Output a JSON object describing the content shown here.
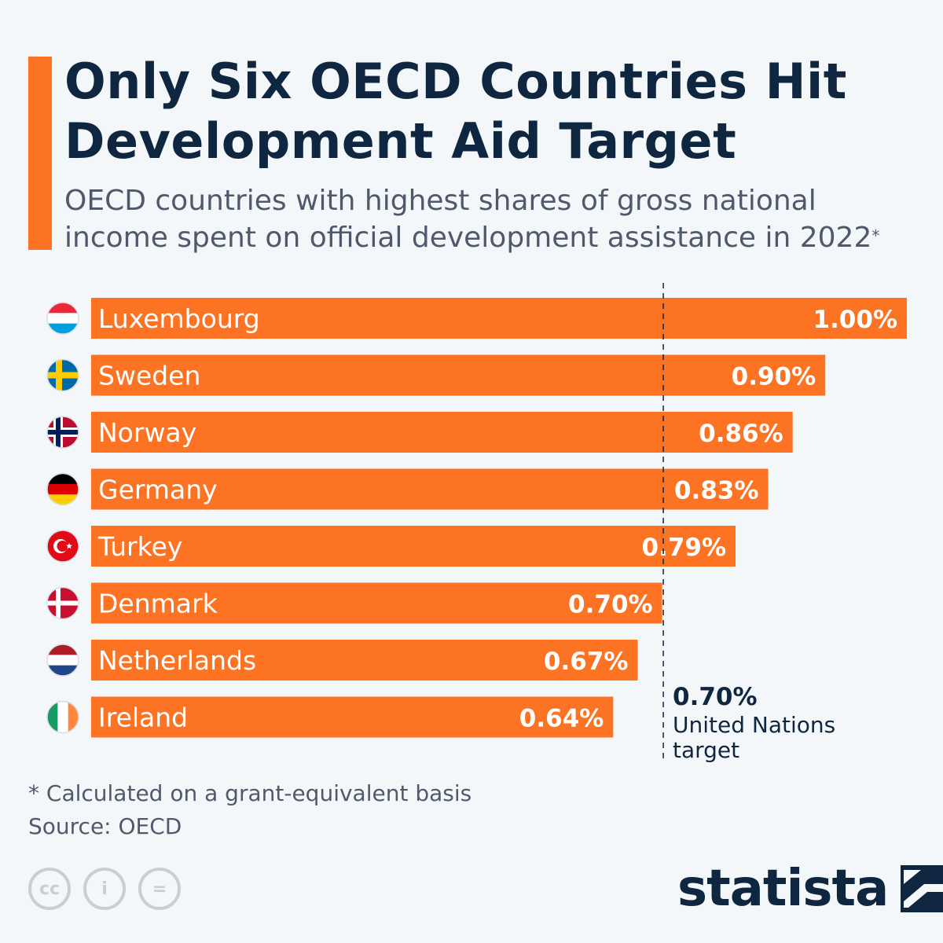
{
  "title": "Only Six OECD Countries Hit Development Aid Target",
  "subtitle": "OECD countries with highest shares of gross national income spent on official development assistance in 2022",
  "subtitle_mark": "*",
  "footnote": "* Calculated on a grant-equivalent basis",
  "source": "Source: OECD",
  "brand": "statista",
  "license_icons": [
    "cc-icon",
    "attribution-icon",
    "no-derivatives-icon"
  ],
  "license_glyphs": [
    "cc",
    "i",
    "="
  ],
  "colors": {
    "bar": "#fc7323",
    "title": "#0f2640",
    "subtitle": "#4e5a6c",
    "accent": "#fc7323"
  },
  "chart_data": {
    "type": "bar",
    "orientation": "horizontal",
    "title": "Only Six OECD Countries Hit Development Aid Target",
    "categories": [
      "Luxembourg",
      "Sweden",
      "Norway",
      "Germany",
      "Turkey",
      "Denmark",
      "Netherlands",
      "Ireland"
    ],
    "values": [
      1.0,
      0.9,
      0.86,
      0.83,
      0.79,
      0.7,
      0.67,
      0.64
    ],
    "labels": [
      "1.00%",
      "0.90%",
      "0.86%",
      "0.83%",
      "0.79%",
      "0.70%",
      "0.67%",
      "0.64%"
    ],
    "unit": "% of GNI",
    "xlim": [
      0,
      1.0
    ],
    "reference_line": {
      "value": 0.7,
      "label_value": "0.70%",
      "label_line1": "United Nations",
      "label_line2": "target"
    }
  }
}
